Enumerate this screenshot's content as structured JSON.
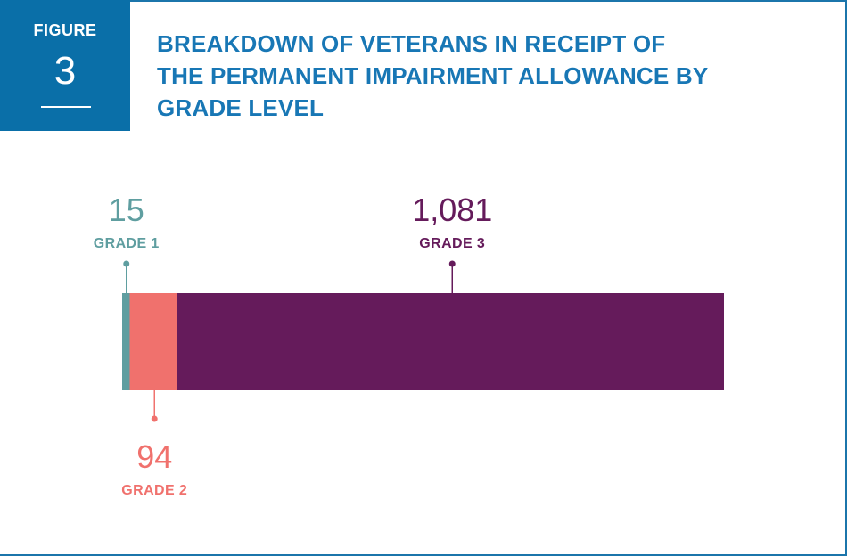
{
  "figure": {
    "label": "FIGURE",
    "number": "3"
  },
  "title": "BREAKDOWN OF VETERANS IN RECEIPT OF THE PERMANENT IMPAIRMENT ALLOWANCE BY GRADE LEVEL",
  "colors": {
    "accent": "#0a6fa8",
    "title": "#1877b5",
    "grade1": "#5f9ea0",
    "grade2": "#f0716d",
    "grade3": "#651b5b"
  },
  "chart_data": {
    "type": "bar",
    "orientation": "horizontal-stacked",
    "categories": [
      "GRADE 1",
      "GRADE 2",
      "GRADE 3"
    ],
    "values": [
      15,
      94,
      1081
    ],
    "value_labels": [
      "15",
      "94",
      "1,081"
    ],
    "title": "BREAKDOWN OF VETERANS IN RECEIPT OF THE PERMANENT IMPAIRMENT ALLOWANCE BY GRADE LEVEL",
    "xlabel": "",
    "ylabel": "",
    "grid": false,
    "legend": "none"
  }
}
